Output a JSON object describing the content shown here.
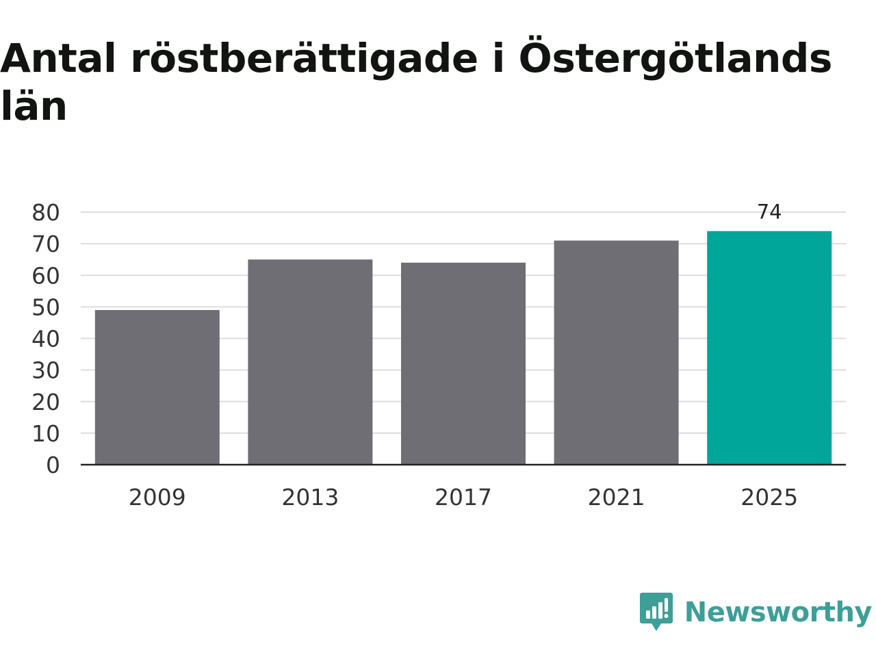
{
  "title": "Antal röstberättigade i Östergötlands län",
  "logo_text": "Newsworthy",
  "colors": {
    "bar_default": "#6f6e74",
    "bar_highlight": "#00a699",
    "grid": "#dddddd",
    "axis": "#222222",
    "logo": "#3e9e98"
  },
  "chart_data": {
    "type": "bar",
    "categories": [
      "2009",
      "2013",
      "2017",
      "2021",
      "2025"
    ],
    "values": [
      49,
      65,
      64,
      71,
      74
    ],
    "highlight_index": 4,
    "data_labels": [
      null,
      null,
      null,
      null,
      "74"
    ],
    "y_ticks": [
      0,
      10,
      20,
      30,
      40,
      50,
      60,
      70,
      80
    ],
    "ylim": [
      0,
      80
    ],
    "grid": true,
    "legend": "none"
  }
}
